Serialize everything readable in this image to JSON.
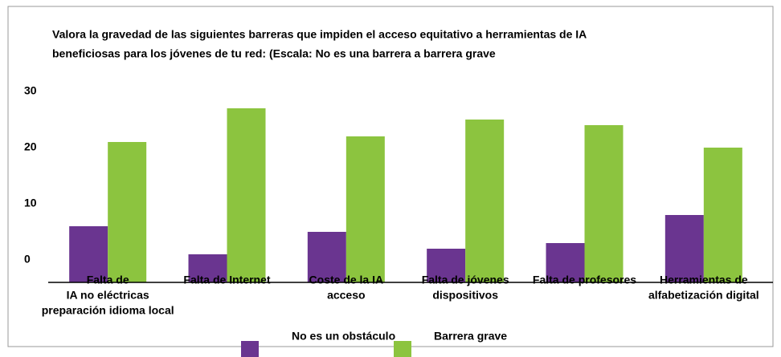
{
  "chart_data": {
    "type": "bar",
    "title": [
      "Valora la gravedad de las siguientes barreras que impiden el acceso equitativo a herramientas de IA",
      "beneficiosas para los jóvenes de tu red: (Escala: No es una barrera a barrera grave"
    ],
    "categories": [
      [
        "Falta de",
        "IA no eléctricas",
        "preparación idioma local"
      ],
      [
        "Falta de Internet"
      ],
      [
        "Coste de la IA",
        "acceso"
      ],
      [
        "Falta de jóvenes",
        "dispositivos"
      ],
      [
        "Falta de profesores"
      ],
      [
        "Herramientas de",
        "alfabetización digital"
      ]
    ],
    "series": [
      {
        "name": "No es un obstáculo",
        "color": "#6a3590",
        "values": [
          6,
          1,
          5,
          2,
          3,
          8
        ]
      },
      {
        "name": "Barrera grave",
        "color": "#8cc43f",
        "values": [
          21,
          27,
          22,
          25,
          24,
          20
        ]
      }
    ],
    "ylim": [
      -4,
      35
    ],
    "yticks": [
      0,
      10,
      20,
      30
    ],
    "grid": false
  }
}
